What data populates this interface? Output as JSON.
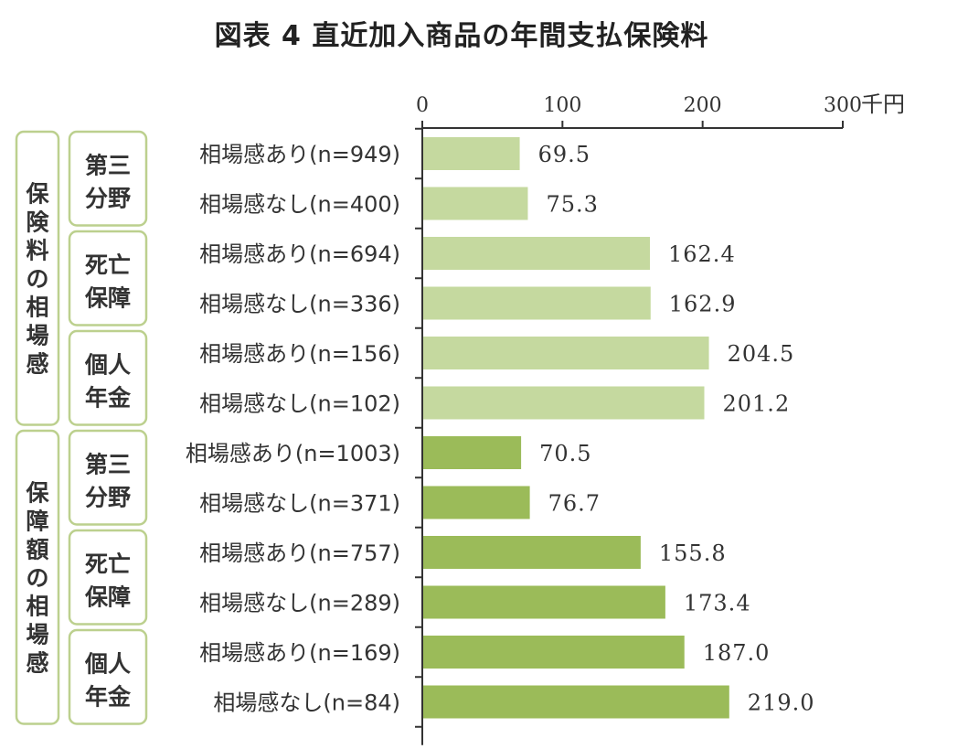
{
  "title": "図表 4 直近加入商品の年間支払保険料",
  "chart_data": {
    "type": "bar",
    "orientation": "horizontal",
    "xlim": [
      0,
      300
    ],
    "ticks": [
      "0",
      "100",
      "200",
      "300"
    ],
    "unit": "千円",
    "grid": false,
    "groups": [
      {
        "label": "保険料の相場感",
        "color": "#c5d99f",
        "subgroups": [
          {
            "label": [
              "第三",
              "分野"
            ],
            "rows": [
              {
                "label": "相場感あり(n=949)",
                "value": 69.5,
                "value_label": "69.5"
              },
              {
                "label": "相場感なし(n=400)",
                "value": 75.3,
                "value_label": "75.3"
              }
            ]
          },
          {
            "label": [
              "死亡",
              "保障"
            ],
            "rows": [
              {
                "label": "相場感あり(n=694)",
                "value": 162.4,
                "value_label": "162.4"
              },
              {
                "label": "相場感なし(n=336)",
                "value": 162.9,
                "value_label": "162.9"
              }
            ]
          },
          {
            "label": [
              "個人",
              "年金"
            ],
            "rows": [
              {
                "label": "相場感あり(n=156)",
                "value": 204.5,
                "value_label": "204.5"
              },
              {
                "label": "相場感なし(n=102)",
                "value": 201.2,
                "value_label": "201.2"
              }
            ]
          }
        ]
      },
      {
        "label": "保障額の相場感",
        "color": "#9bbb59",
        "subgroups": [
          {
            "label": [
              "第三",
              "分野"
            ],
            "rows": [
              {
                "label": "相場感あり(n=1003)",
                "value": 70.5,
                "value_label": "70.5"
              },
              {
                "label": "相場感なし(n=371)",
                "value": 76.7,
                "value_label": "76.7"
              }
            ]
          },
          {
            "label": [
              "死亡",
              "保障"
            ],
            "rows": [
              {
                "label": "相場感あり(n=757)",
                "value": 155.8,
                "value_label": "155.8"
              },
              {
                "label": "相場感なし(n=289)",
                "value": 173.4,
                "value_label": "173.4"
              }
            ]
          },
          {
            "label": [
              "個人",
              "年金"
            ],
            "rows": [
              {
                "label": "相場感あり(n=169)",
                "value": 187.0,
                "value_label": "187.0"
              },
              {
                "label": "相場感なし(n=84)",
                "value": 219.0,
                "value_label": "219.0"
              }
            ]
          }
        ]
      }
    ]
  },
  "colors": {
    "box_border": "#bcd08e",
    "axis": "#333333"
  }
}
